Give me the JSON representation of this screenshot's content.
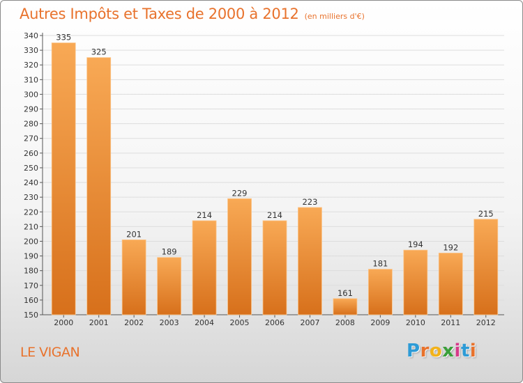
{
  "title": "Autres Impôts et Taxes de 2000 à 2012",
  "subtitle": "(en milliers d'€)",
  "commune": "LE VIGAN",
  "brand": {
    "letters": [
      "P",
      "r",
      "o",
      "x",
      "i",
      "t",
      "i"
    ],
    "colors": [
      "#2d9bd6",
      "#e8722c",
      "#f2b21a",
      "#3a9f3a",
      "#d63a8a",
      "#2d9bd6",
      "#e8722c"
    ]
  },
  "colors": {
    "accent": "#e8722c",
    "bar_top": "#f8a955",
    "bar_bottom": "#d7701b",
    "grid": "#dddddd"
  },
  "chart_data": {
    "type": "bar",
    "title": "Autres Impôts et Taxes de 2000 à 2012",
    "subtitle": "(en milliers d'€)",
    "categories": [
      "2000",
      "2001",
      "2002",
      "2003",
      "2004",
      "2005",
      "2006",
      "2007",
      "2008",
      "2009",
      "2010",
      "2011",
      "2012"
    ],
    "values": [
      335,
      325,
      201,
      189,
      214,
      229,
      214,
      223,
      161,
      181,
      194,
      192,
      215
    ],
    "ylim": [
      150,
      340
    ],
    "yticks": [
      150,
      160,
      170,
      180,
      190,
      200,
      210,
      220,
      230,
      240,
      250,
      260,
      270,
      280,
      290,
      300,
      310,
      320,
      330,
      340
    ],
    "grid": "horizontal",
    "legend": "none"
  }
}
